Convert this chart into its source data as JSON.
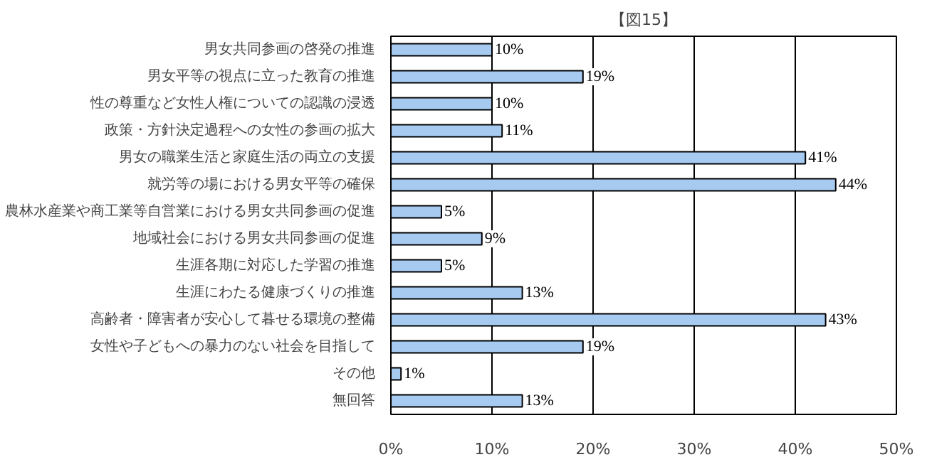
{
  "chart_data": {
    "type": "bar",
    "orientation": "horizontal",
    "title": "【図15】",
    "categories": [
      "男女共同参画の啓発の推進",
      "男女平等の視点に立った教育の推進",
      "性の尊重など女性人権についての認識の浸透",
      "政策・方針決定過程への女性の参画の拡大",
      "男女の職業生活と家庭生活の両立の支援",
      "就労等の場における男女平等の確保",
      "農林水産業や商工業等自営業における男女共同参画の促進",
      "地域社会における男女共同参画の促進",
      "生涯各期に対応した学習の推進",
      "生涯にわたる健康づくりの推進",
      "高齢者・障害者が安心して暮せる環境の整備",
      "女性や子どもへの暴力のない社会を目指して",
      "その他",
      "無回答"
    ],
    "values": [
      10,
      19,
      10,
      11,
      41,
      44,
      5,
      9,
      5,
      13,
      43,
      19,
      1,
      13
    ],
    "value_labels": [
      "10%",
      "19%",
      "10%",
      "11%",
      "41%",
      "44%",
      "5%",
      "9%",
      "5%",
      "13%",
      "43%",
      "19%",
      "1%",
      "13%"
    ],
    "color": "#a6caf0",
    "xlim": [
      0,
      50
    ],
    "xticks": [
      {
        "value": 0,
        "label": "0%"
      },
      {
        "value": 10,
        "label": "10%"
      },
      {
        "value": 20,
        "label": "20%"
      },
      {
        "value": 30,
        "label": "30%"
      },
      {
        "value": 40,
        "label": "40%"
      },
      {
        "value": 50,
        "label": "50%"
      }
    ],
    "grid": "x"
  }
}
